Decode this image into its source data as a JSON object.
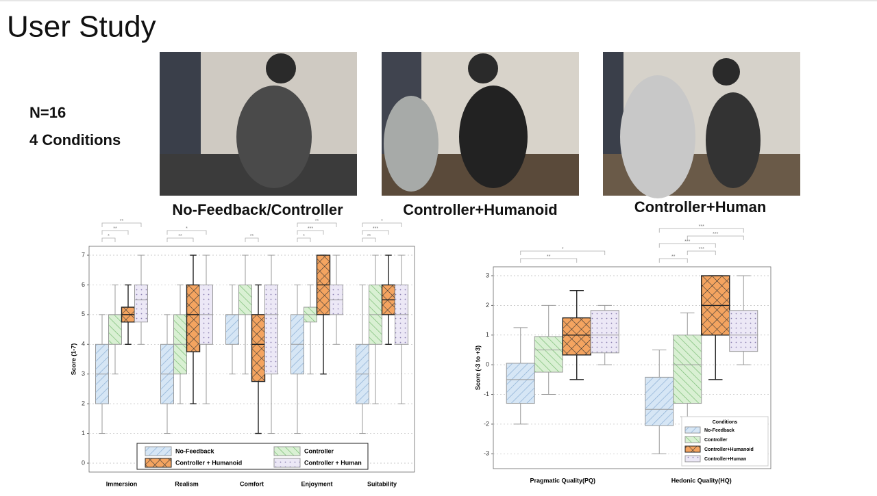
{
  "title": "User Study",
  "notes": [
    "N=16",
    "4 Conditions"
  ],
  "photos": [
    {
      "caption": "No-Feedback/Controller"
    },
    {
      "caption": "Controller+Humanoid"
    },
    {
      "caption": "Controller+Human"
    }
  ],
  "chart_data": [
    {
      "type": "box",
      "ylabel": "Score (1-7)",
      "categories": [
        "Immersion",
        "Realism",
        "Comfort",
        "Enjoyment",
        "Suitability"
      ],
      "ylim": [
        -0.3,
        7.3
      ],
      "yticks": [
        0,
        1,
        2,
        3,
        4,
        5,
        6,
        7
      ],
      "grid": true,
      "legend": "bottom",
      "series": [
        {
          "name": "No-Feedback",
          "color": "#d6e6f5",
          "hatch": "forward",
          "values": [
            {
              "min": 1,
              "q1": 2,
              "median": 3,
              "q3": 4,
              "max": 5
            },
            {
              "min": 1,
              "q1": 2,
              "median": 3,
              "q3": 4,
              "max": 5
            },
            {
              "min": 3,
              "q1": 4,
              "median": 5,
              "q3": 5,
              "max": 6
            },
            {
              "min": 1,
              "q1": 3,
              "median": 4,
              "q3": 5,
              "max": 6
            },
            {
              "min": 1,
              "q1": 2,
              "median": 3,
              "q3": 4,
              "max": 6
            }
          ]
        },
        {
          "name": "Controller",
          "color": "#d9f0d3",
          "hatch": "backward",
          "values": [
            {
              "min": 3,
              "q1": 4,
              "median": 5,
              "q3": 5,
              "max": 6
            },
            {
              "min": 2,
              "q1": 3,
              "median": 4,
              "q3": 5,
              "max": 6
            },
            {
              "min": 3,
              "q1": 5,
              "median": 6,
              "q3": 6,
              "max": 7
            },
            {
              "min": 3,
              "q1": 4.75,
              "median": 5,
              "q3": 5.25,
              "max": 6
            },
            {
              "min": 2,
              "q1": 4,
              "median": 5,
              "q3": 6,
              "max": 7
            }
          ]
        },
        {
          "name": "Controller + Humanoid",
          "color": "#f4a460",
          "hatch": "cross",
          "values": [
            {
              "min": 4,
              "q1": 4.75,
              "median": 5,
              "q3": 5.25,
              "max": 6
            },
            {
              "min": 2,
              "q1": 3.75,
              "median": 5,
              "q3": 6,
              "max": 7
            },
            {
              "min": 1,
              "q1": 2.75,
              "median": 4,
              "q3": 5,
              "max": 6
            },
            {
              "min": 3,
              "q1": 5,
              "median": 6,
              "q3": 7,
              "max": 7
            },
            {
              "min": 4,
              "q1": 5,
              "median": 5.5,
              "q3": 6,
              "max": 7
            }
          ]
        },
        {
          "name": "Controller + Human",
          "color": "#ece8f6",
          "hatch": "dots",
          "values": [
            {
              "min": 4,
              "q1": 4.75,
              "median": 5.5,
              "q3": 6,
              "max": 7
            },
            {
              "min": 2,
              "q1": 4,
              "median": 5,
              "q3": 6,
              "max": 7
            },
            {
              "min": 1,
              "q1": 3,
              "median": 5,
              "q3": 6,
              "max": 7
            },
            {
              "min": 4,
              "q1": 5,
              "median": 5.5,
              "q3": 6,
              "max": 7
            },
            {
              "min": 2,
              "q1": 4,
              "median": 5,
              "q3": 6,
              "max": 7
            }
          ]
        }
      ],
      "brackets": [
        {
          "category": 0,
          "from": 0,
          "to": 3,
          "label": "**"
        },
        {
          "category": 0,
          "from": 0,
          "to": 2,
          "label": "**"
        },
        {
          "category": 0,
          "from": 0,
          "to": 1,
          "label": "*"
        },
        {
          "category": 1,
          "from": 0,
          "to": 3,
          "label": "*"
        },
        {
          "category": 1,
          "from": 0,
          "to": 2,
          "label": "**"
        },
        {
          "category": 2,
          "from": 1,
          "to": 2,
          "label": "**"
        },
        {
          "category": 3,
          "from": 0,
          "to": 3,
          "label": "**"
        },
        {
          "category": 3,
          "from": 0,
          "to": 2,
          "label": "***"
        },
        {
          "category": 3,
          "from": 0,
          "to": 1,
          "label": "*"
        },
        {
          "category": 4,
          "from": 0,
          "to": 3,
          "label": "*"
        },
        {
          "category": 4,
          "from": 0,
          "to": 2,
          "label": "***"
        },
        {
          "category": 4,
          "from": 0,
          "to": 1,
          "label": "**"
        }
      ]
    },
    {
      "type": "box",
      "ylabel": "Score (-3 to +3)",
      "categories": [
        "Pragmatic Quality(PQ)",
        "Hedonic Quality(HQ)"
      ],
      "ylim": [
        -3.5,
        3.3
      ],
      "yticks": [
        -3,
        -2,
        -1,
        0,
        1,
        2,
        3
      ],
      "grid": true,
      "legend": "lower right",
      "legend_title": "Conditions",
      "series": [
        {
          "name": "No-Feedback",
          "color": "#d6e6f5",
          "hatch": "forward",
          "values": [
            {
              "min": -2,
              "q1": -1.3,
              "median": -0.5,
              "q3": 0.05,
              "max": 1.25
            },
            {
              "min": -3,
              "q1": -2.05,
              "median": -1.5,
              "q3": -0.42,
              "max": 0.5
            }
          ]
        },
        {
          "name": "Controller",
          "color": "#d9f0d3",
          "hatch": "backward",
          "values": [
            {
              "min": -1,
              "q1": -0.25,
              "median": 0.5,
              "q3": 0.95,
              "max": 2
            },
            {
              "min": -1.75,
              "q1": -1.3,
              "median": 0,
              "q3": 1,
              "max": 1.75
            }
          ]
        },
        {
          "name": "Controller+Humanoid",
          "color": "#f4a460",
          "hatch": "cross",
          "values": [
            {
              "min": -0.5,
              "q1": 0.33,
              "median": 1,
              "q3": 1.58,
              "max": 2.5
            },
            {
              "min": -0.5,
              "q1": 1,
              "median": 2,
              "q3": 3,
              "max": 3
            }
          ]
        },
        {
          "name": "Controller+Human",
          "color": "#ece8f6",
          "hatch": "dots",
          "values": [
            {
              "min": 0,
              "q1": 0.4,
              "median": 1,
              "q3": 1.83,
              "max": 2
            },
            {
              "min": 0,
              "q1": 0.45,
              "median": 1,
              "q3": 1.83,
              "max": 3
            }
          ]
        }
      ],
      "brackets": [
        {
          "category": 0,
          "from": 0,
          "to": 3,
          "label": "*"
        },
        {
          "category": 0,
          "from": 0,
          "to": 2,
          "label": "**"
        },
        {
          "category": 1,
          "from": 0,
          "to": 3,
          "label": "***"
        },
        {
          "category": 1,
          "from": 1,
          "to": 3,
          "label": "***"
        },
        {
          "category": 1,
          "from": 0,
          "to": 2,
          "label": "***"
        },
        {
          "category": 1,
          "from": 1,
          "to": 2,
          "label": "***"
        },
        {
          "category": 1,
          "from": 0,
          "to": 1,
          "label": "**"
        }
      ]
    }
  ]
}
